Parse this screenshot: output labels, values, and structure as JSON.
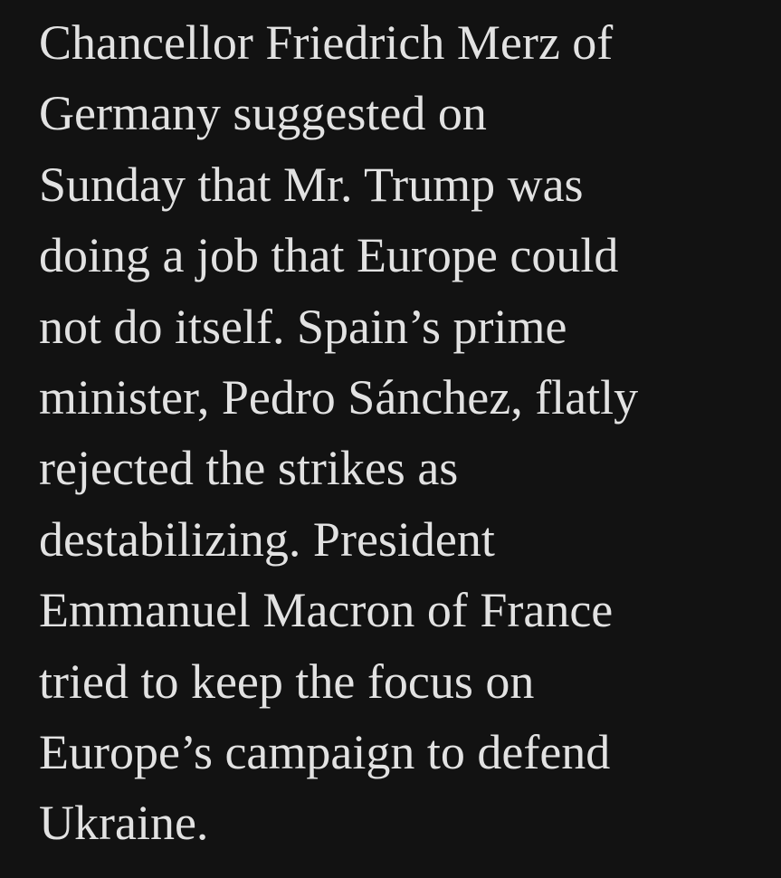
{
  "article": {
    "paragraph_lines": [
      "Chancellor Friedrich Merz of",
      "Germany suggested on",
      "Sunday that Mr. Trump was",
      "doing a job that Europe could",
      "not do itself. Spain’s prime",
      "minister, Pedro Sánchez, flatly",
      "rejected the strikes as",
      "destabilizing. President",
      "Emmanuel Macron of France",
      "tried to keep the focus on",
      "Europe’s campaign to defend",
      "Ukraine."
    ]
  },
  "colors": {
    "background": "#121212",
    "text": "#e2e2e2"
  }
}
